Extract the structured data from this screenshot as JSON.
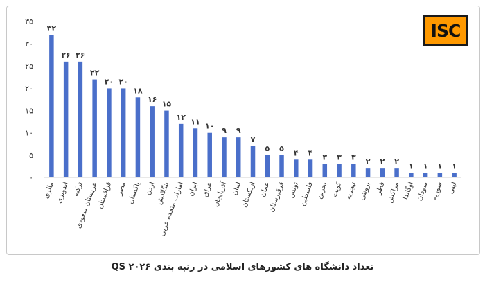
{
  "caption": "تعداد دانشگاه های کشورهای اسلامی در رتبه بندی QS ۲۰۲۶",
  "logo": {
    "text": "ISC",
    "color": "#ff9900"
  },
  "colors": {
    "bar": "#4a6fca",
    "text": "#333333",
    "axis": "#d0d0d0"
  },
  "chart_data": {
    "type": "bar",
    "title": "",
    "xlabel": "",
    "ylabel": "",
    "ylim": [
      0,
      35
    ],
    "yticks": [
      0,
      5,
      10,
      15,
      20,
      25,
      30,
      35
    ],
    "ytick_labels": [
      "۰",
      "۵",
      "۱۰",
      "۱۵",
      "۲۰",
      "۲۵",
      "۳۰",
      "۳۵"
    ],
    "grid": false,
    "categories": [
      "مالزی",
      "اندونزی",
      "ترکیه",
      "عربستان سعودی",
      "قزاقستان",
      "مصر",
      "پاکستان",
      "اردن",
      "بنگلادش",
      "امارات متحده عربی",
      "ایران",
      "عراق",
      "آذربایجان",
      "لبنان",
      "ازبکستان",
      "عمان",
      "قرقیزستان",
      "تونس",
      "فلسطین",
      "بحرین",
      "کویت",
      "نیجریه",
      "برونئی",
      "قطر",
      "مراکش",
      "اوگاندا",
      "سودان",
      "سوریه",
      "لیبی"
    ],
    "values": [
      32,
      26,
      26,
      22,
      20,
      20,
      18,
      16,
      15,
      12,
      11,
      10,
      9,
      9,
      7,
      5,
      5,
      4,
      4,
      3,
      3,
      3,
      2,
      2,
      2,
      1,
      1,
      1,
      1
    ],
    "value_labels": [
      "۳۲",
      "۲۶",
      "۲۶",
      "۲۲",
      "۲۰",
      "۲۰",
      "۱۸",
      "۱۶",
      "۱۵",
      "۱۲",
      "۱۱",
      "۱۰",
      "۹",
      "۹",
      "۷",
      "۵",
      "۵",
      "۴",
      "۴",
      "۳",
      "۳",
      "۳",
      "۲",
      "۲",
      "۲",
      "۱",
      "۱",
      "۱",
      "۱"
    ]
  }
}
